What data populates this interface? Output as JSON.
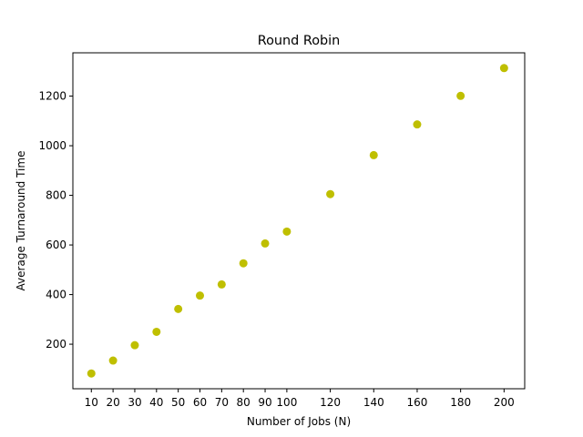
{
  "chart_data": {
    "type": "scatter",
    "title": "Round Robin",
    "xlabel": "Number of Jobs (N)",
    "ylabel": "Average Turnaround Time",
    "marker_color": "#bfbf00",
    "x": [
      10,
      20,
      30,
      40,
      50,
      60,
      70,
      80,
      90,
      100,
      120,
      140,
      160,
      180,
      200
    ],
    "y": [
      82,
      134,
      196,
      250,
      342,
      396,
      441,
      526,
      606,
      654,
      805,
      962,
      1086,
      1201,
      1313
    ],
    "xticks": [
      10,
      20,
      30,
      40,
      50,
      60,
      70,
      80,
      90,
      100,
      120,
      140,
      160,
      180,
      200
    ],
    "yticks": [
      200,
      400,
      600,
      800,
      1000,
      1200
    ],
    "xlim": [
      1.5,
      209.5
    ],
    "ylim": [
      20.45,
      1374.55
    ],
    "grid": false,
    "legend": false
  }
}
